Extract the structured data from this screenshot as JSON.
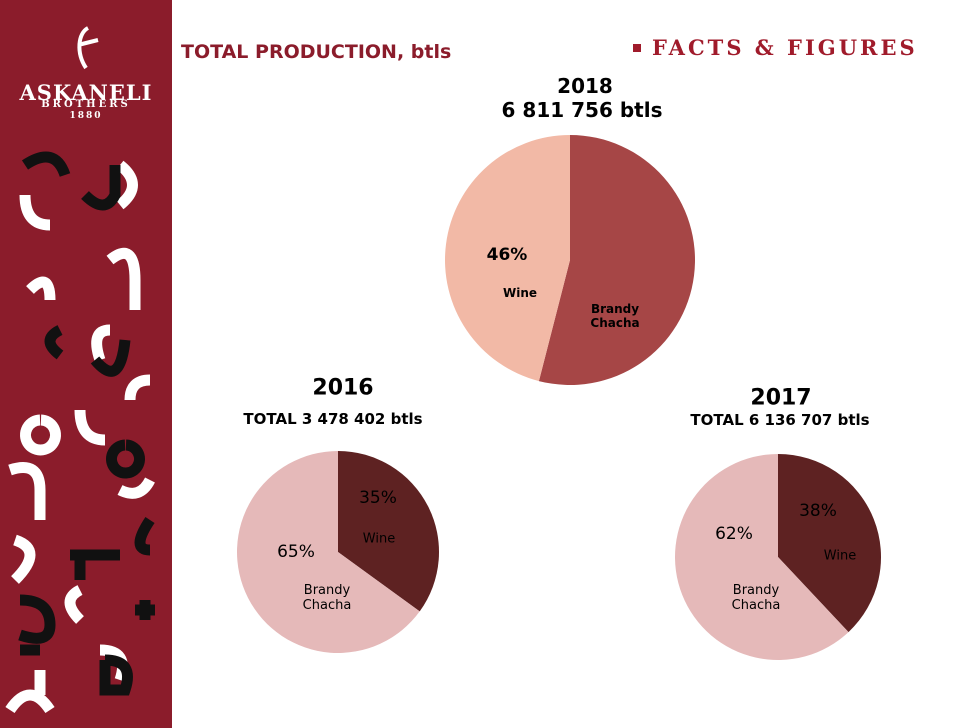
{
  "slide": {
    "title": "TOTAL PRODUCTION, btls",
    "section": "FACTS & FIGURES",
    "logo": {
      "name": "ASKANELI",
      "sub": "BROTHERS",
      "year": "1880"
    }
  },
  "chart_data": [
    {
      "type": "pie",
      "title": "2018",
      "subtitle": "6 811 756 btls",
      "categories": [
        "Brandy Chacha",
        "Wine"
      ],
      "values": [
        54,
        46
      ],
      "value_labels": [
        null,
        "46%"
      ],
      "colors": [
        "#a64646",
        "#f2b9a6"
      ]
    },
    {
      "type": "pie",
      "title": "2016",
      "subtitle": "TOTAL 3 478 402 btls",
      "categories": [
        "Wine",
        "Brandy Chacha"
      ],
      "values": [
        35,
        65
      ],
      "value_labels": [
        "35%",
        "65%"
      ],
      "colors": [
        "#5e2222",
        "#e5b9b9"
      ]
    },
    {
      "type": "pie",
      "title": "2017",
      "subtitle": "TOTAL 6 136 707 btls",
      "categories": [
        "Wine",
        "Brandy Chacha"
      ],
      "values": [
        38,
        62
      ],
      "value_labels": [
        "38%",
        "62%"
      ],
      "colors": [
        "#5e2222",
        "#e5b9b9"
      ]
    }
  ]
}
